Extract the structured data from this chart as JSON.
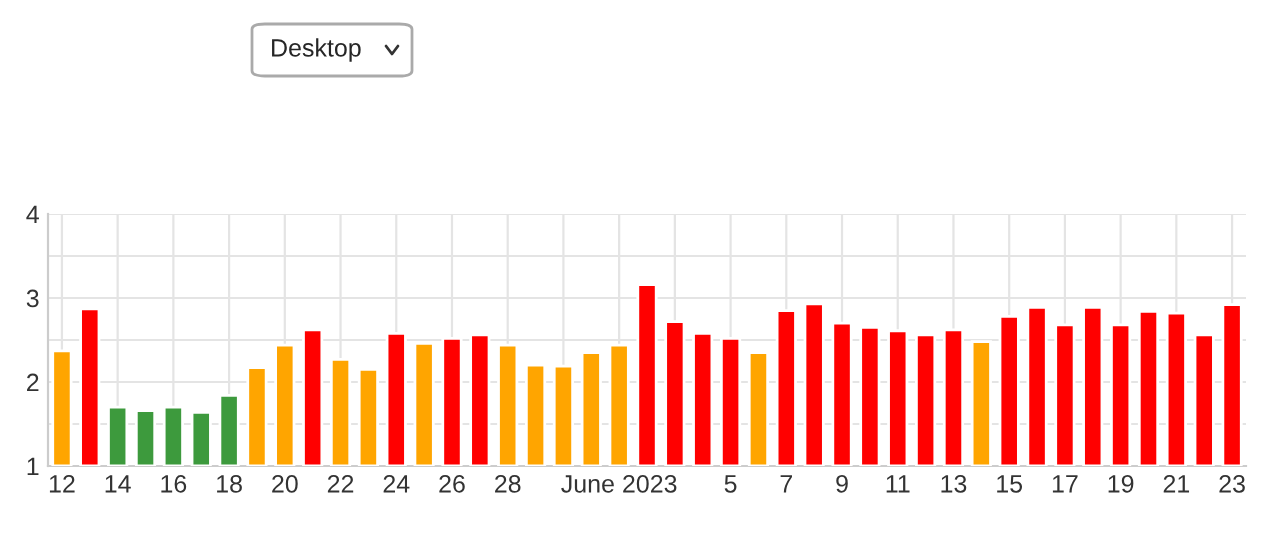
{
  "chart_data": {
    "type": "bar",
    "x": [
      "2023-05-12",
      "2023-05-13",
      "2023-05-14",
      "2023-05-15",
      "2023-05-16",
      "2023-05-17",
      "2023-05-18",
      "2023-05-19",
      "2023-05-20",
      "2023-05-21",
      "2023-05-22",
      "2023-05-23",
      "2023-05-24",
      "2023-05-25",
      "2023-05-26",
      "2023-05-27",
      "2023-05-28",
      "2023-05-29",
      "2023-05-30",
      "2023-05-31",
      "2023-06-01",
      "2023-06-02",
      "2023-06-03",
      "2023-06-04",
      "2023-06-05",
      "2023-06-06",
      "2023-06-07",
      "2023-06-08",
      "2023-06-09",
      "2023-06-10",
      "2023-06-11",
      "2023-06-12",
      "2023-06-13",
      "2023-06-14",
      "2023-06-15",
      "2023-06-16",
      "2023-06-17",
      "2023-06-18",
      "2023-06-19",
      "2023-06-20",
      "2023-06-21",
      "2023-06-22",
      "2023-06-23"
    ],
    "values": [
      2.37,
      2.87,
      1.7,
      1.66,
      1.7,
      1.64,
      1.84,
      2.17,
      2.44,
      2.62,
      2.27,
      2.15,
      2.58,
      2.46,
      2.52,
      2.56,
      2.44,
      2.2,
      2.19,
      2.35,
      2.44,
      3.16,
      2.72,
      2.58,
      2.52,
      2.35,
      2.85,
      2.93,
      2.7,
      2.65,
      2.61,
      2.56,
      2.62,
      2.48,
      2.78,
      2.89,
      2.68,
      2.89,
      2.68,
      2.84,
      2.82,
      2.56,
      2.92
    ],
    "colors": [
      "#ffa500",
      "#ff0000",
      "#3d9a3d",
      "#3d9a3d",
      "#3d9a3d",
      "#3d9a3d",
      "#3d9a3d",
      "#ffa500",
      "#ffa500",
      "#ff0000",
      "#ffa500",
      "#ffa500",
      "#ff0000",
      "#ffa500",
      "#ff0000",
      "#ff0000",
      "#ffa500",
      "#ffa500",
      "#ffa500",
      "#ffa500",
      "#ffa500",
      "#ff0000",
      "#ff0000",
      "#ff0000",
      "#ff0000",
      "#ffa500",
      "#ff0000",
      "#ff0000",
      "#ff0000",
      "#ff0000",
      "#ff0000",
      "#ff0000",
      "#ff0000",
      "#ffa500",
      "#ff0000",
      "#ff0000",
      "#ff0000",
      "#ff0000",
      "#ff0000",
      "#ff0000",
      "#ff0000",
      "#ff0000",
      "#ff0000"
    ],
    "xlim": [
      "2023-05-11T12:00",
      "2023-06-23T12:00"
    ],
    "xticks": [
      {
        "value": "2023-05-12",
        "label": "12"
      },
      {
        "value": "2023-05-14",
        "label": "14"
      },
      {
        "value": "2023-05-16",
        "label": "16"
      },
      {
        "value": "2023-05-18",
        "label": "18"
      },
      {
        "value": "2023-05-20",
        "label": "20"
      },
      {
        "value": "2023-05-22",
        "label": "22"
      },
      {
        "value": "2023-05-24",
        "label": "24"
      },
      {
        "value": "2023-05-26",
        "label": "26"
      },
      {
        "value": "2023-05-28",
        "label": "28"
      },
      {
        "value": "2023-05-30",
        "label": null
      },
      {
        "value": "2023-06-01",
        "label": "June 2023"
      },
      {
        "value": "2023-06-03",
        "label": null
      },
      {
        "value": "2023-06-05",
        "label": "5"
      },
      {
        "value": "2023-06-07",
        "label": "7"
      },
      {
        "value": "2023-06-09",
        "label": "9"
      },
      {
        "value": "2023-06-11",
        "label": "11"
      },
      {
        "value": "2023-06-13",
        "label": "13"
      },
      {
        "value": "2023-06-15",
        "label": "15"
      },
      {
        "value": "2023-06-17",
        "label": "17"
      },
      {
        "value": "2023-06-19",
        "label": "19"
      },
      {
        "value": "2023-06-21",
        "label": "21"
      },
      {
        "value": "2023-06-23",
        "label": "23"
      }
    ],
    "ylim": [
      1,
      4
    ],
    "yticks": [
      1,
      {
        "value": 1.5,
        "label": null
      },
      2,
      {
        "value": 2.5,
        "label": null
      },
      3,
      {
        "value": 3.5,
        "label": null
      },
      4
    ],
    "grid": true,
    "annotations": [
      "Desktop"
    ]
  }
}
